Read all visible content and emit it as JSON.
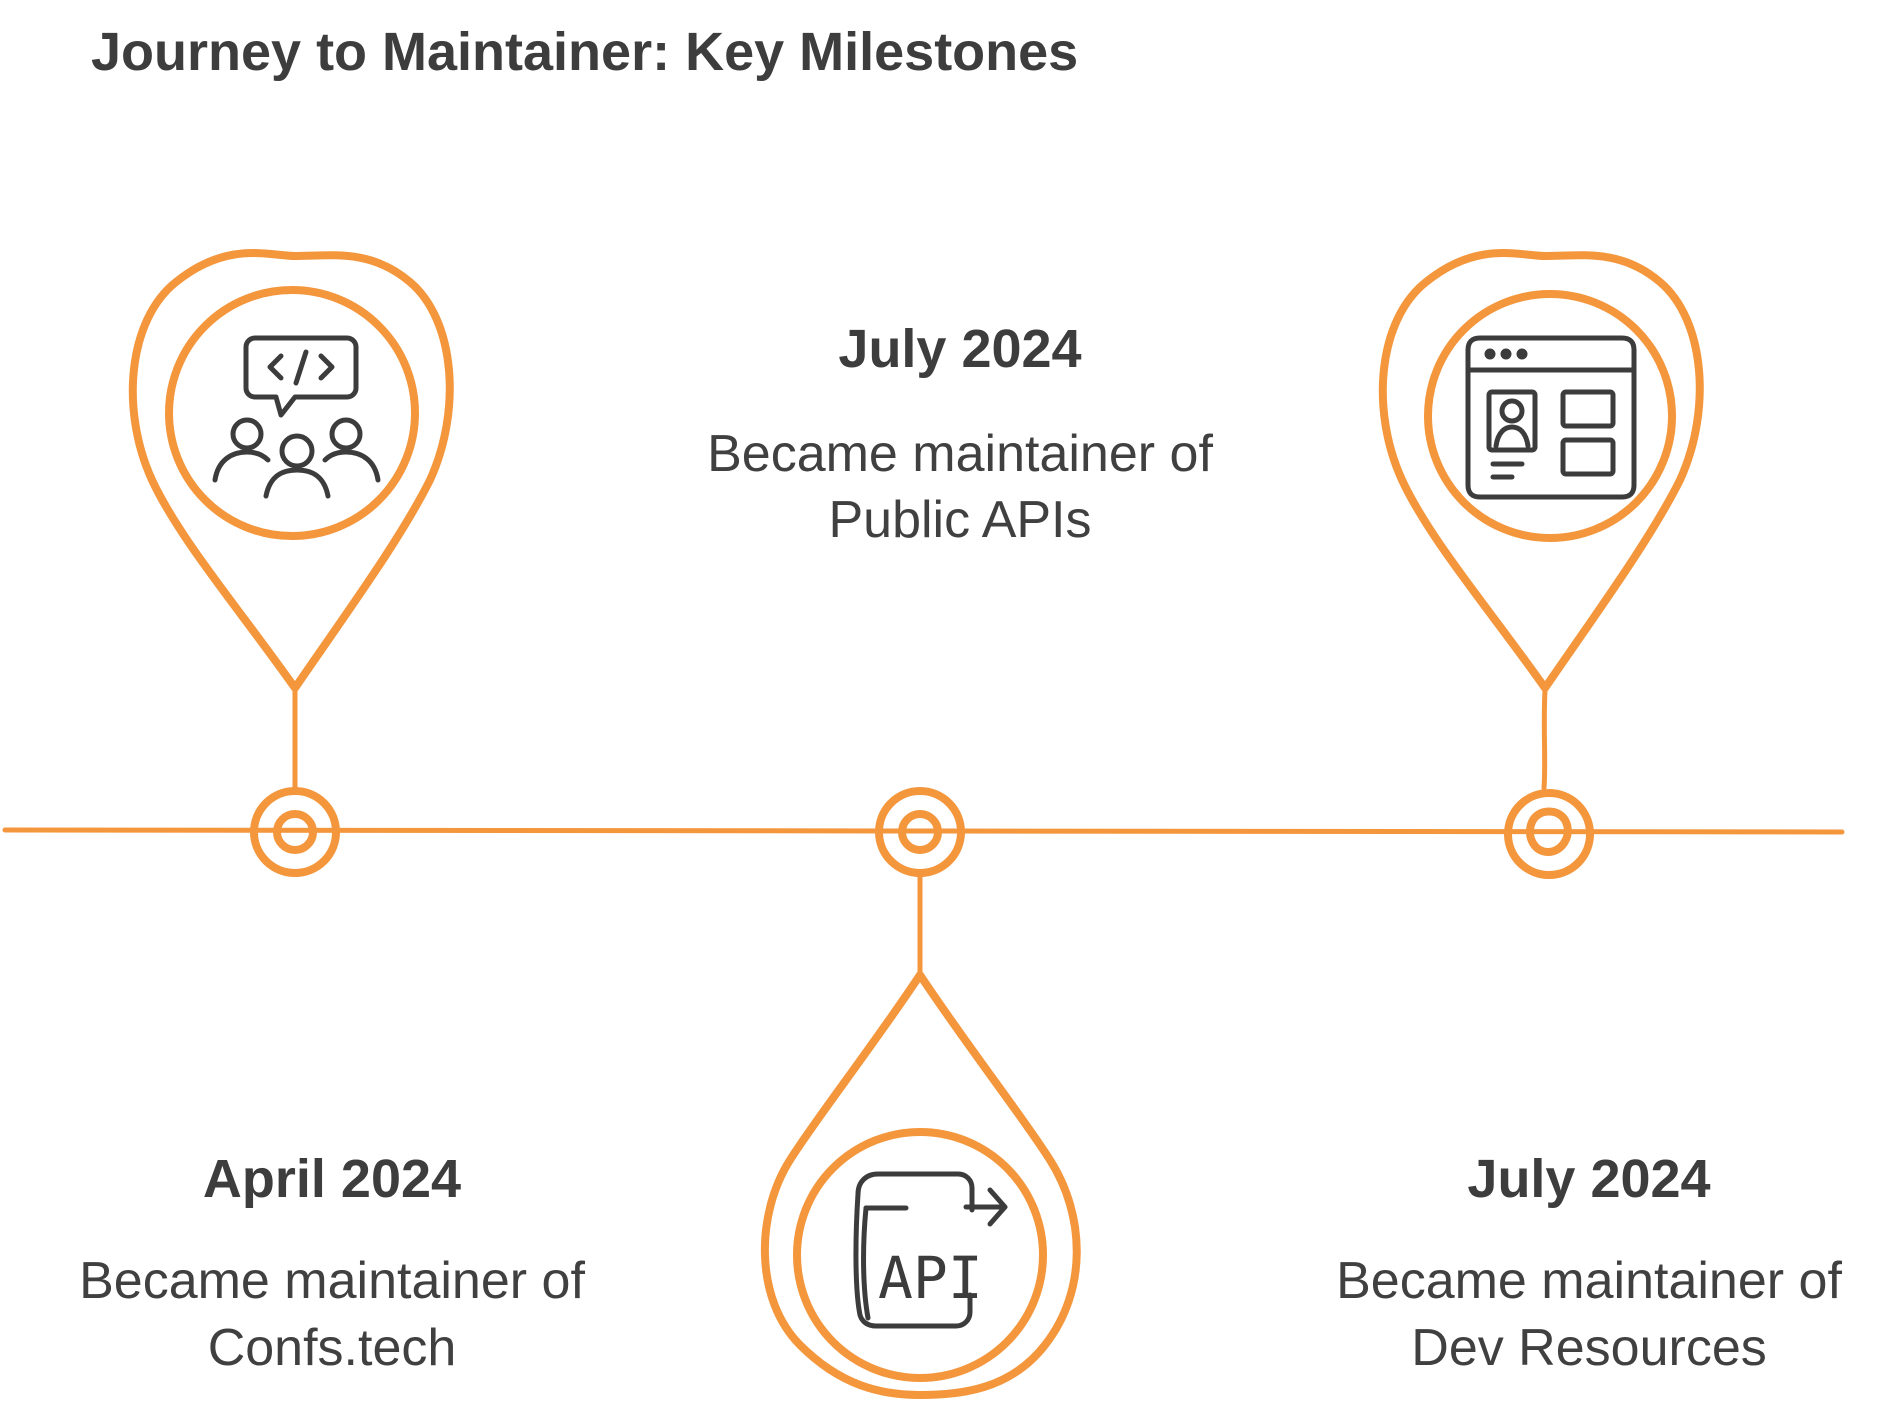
{
  "title": "Journey to Maintainer: Key Milestones",
  "colors": {
    "accent": "#F4963C",
    "text": "#3d3d3d",
    "icon": "#3c3c3c"
  },
  "milestones": [
    {
      "date": "April 2024",
      "desc_line1": "Became maintainer of",
      "desc_line2": "Confs.tech",
      "icon": "code-chat-people-icon"
    },
    {
      "date": "July 2024",
      "desc_line1": "Became maintainer of",
      "desc_line2": "Public APIs",
      "icon": "api-document-icon",
      "icon_label": "API"
    },
    {
      "date": "July 2024",
      "desc_line1": "Became maintainer of",
      "desc_line2": "Dev Resources",
      "icon": "web-profile-page-icon"
    }
  ]
}
